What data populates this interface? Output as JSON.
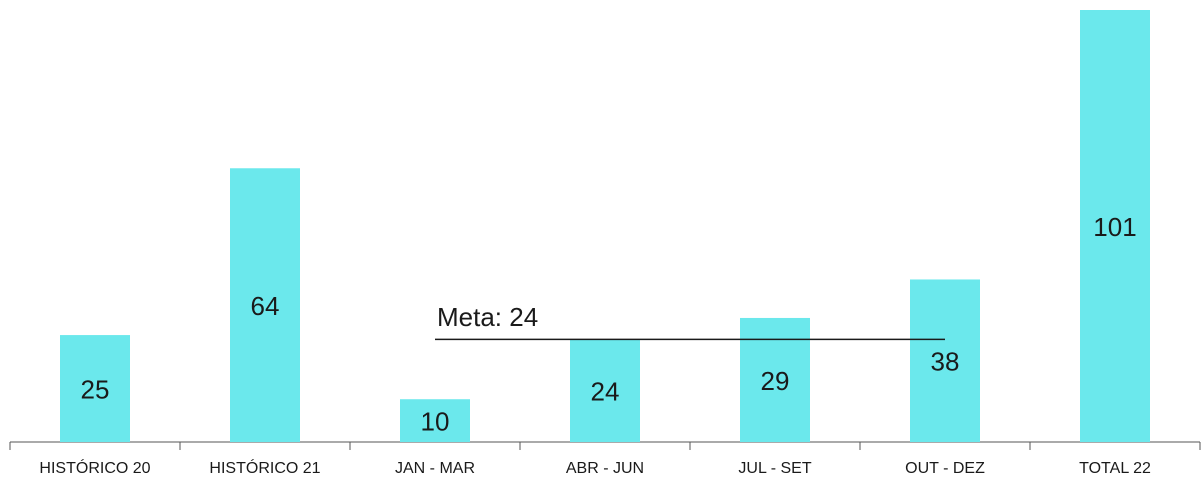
{
  "chart_data": {
    "type": "bar",
    "categories": [
      "HISTÓRICO 20",
      "HISTÓRICO 21",
      "JAN - MAR",
      "ABR - JUN",
      "JUL - SET",
      "OUT - DEZ",
      "TOTAL 22"
    ],
    "values": [
      25,
      64,
      10,
      24,
      29,
      38,
      101
    ],
    "color": "#6be8ec",
    "target": {
      "label": "Meta: 24",
      "value": 24
    }
  }
}
